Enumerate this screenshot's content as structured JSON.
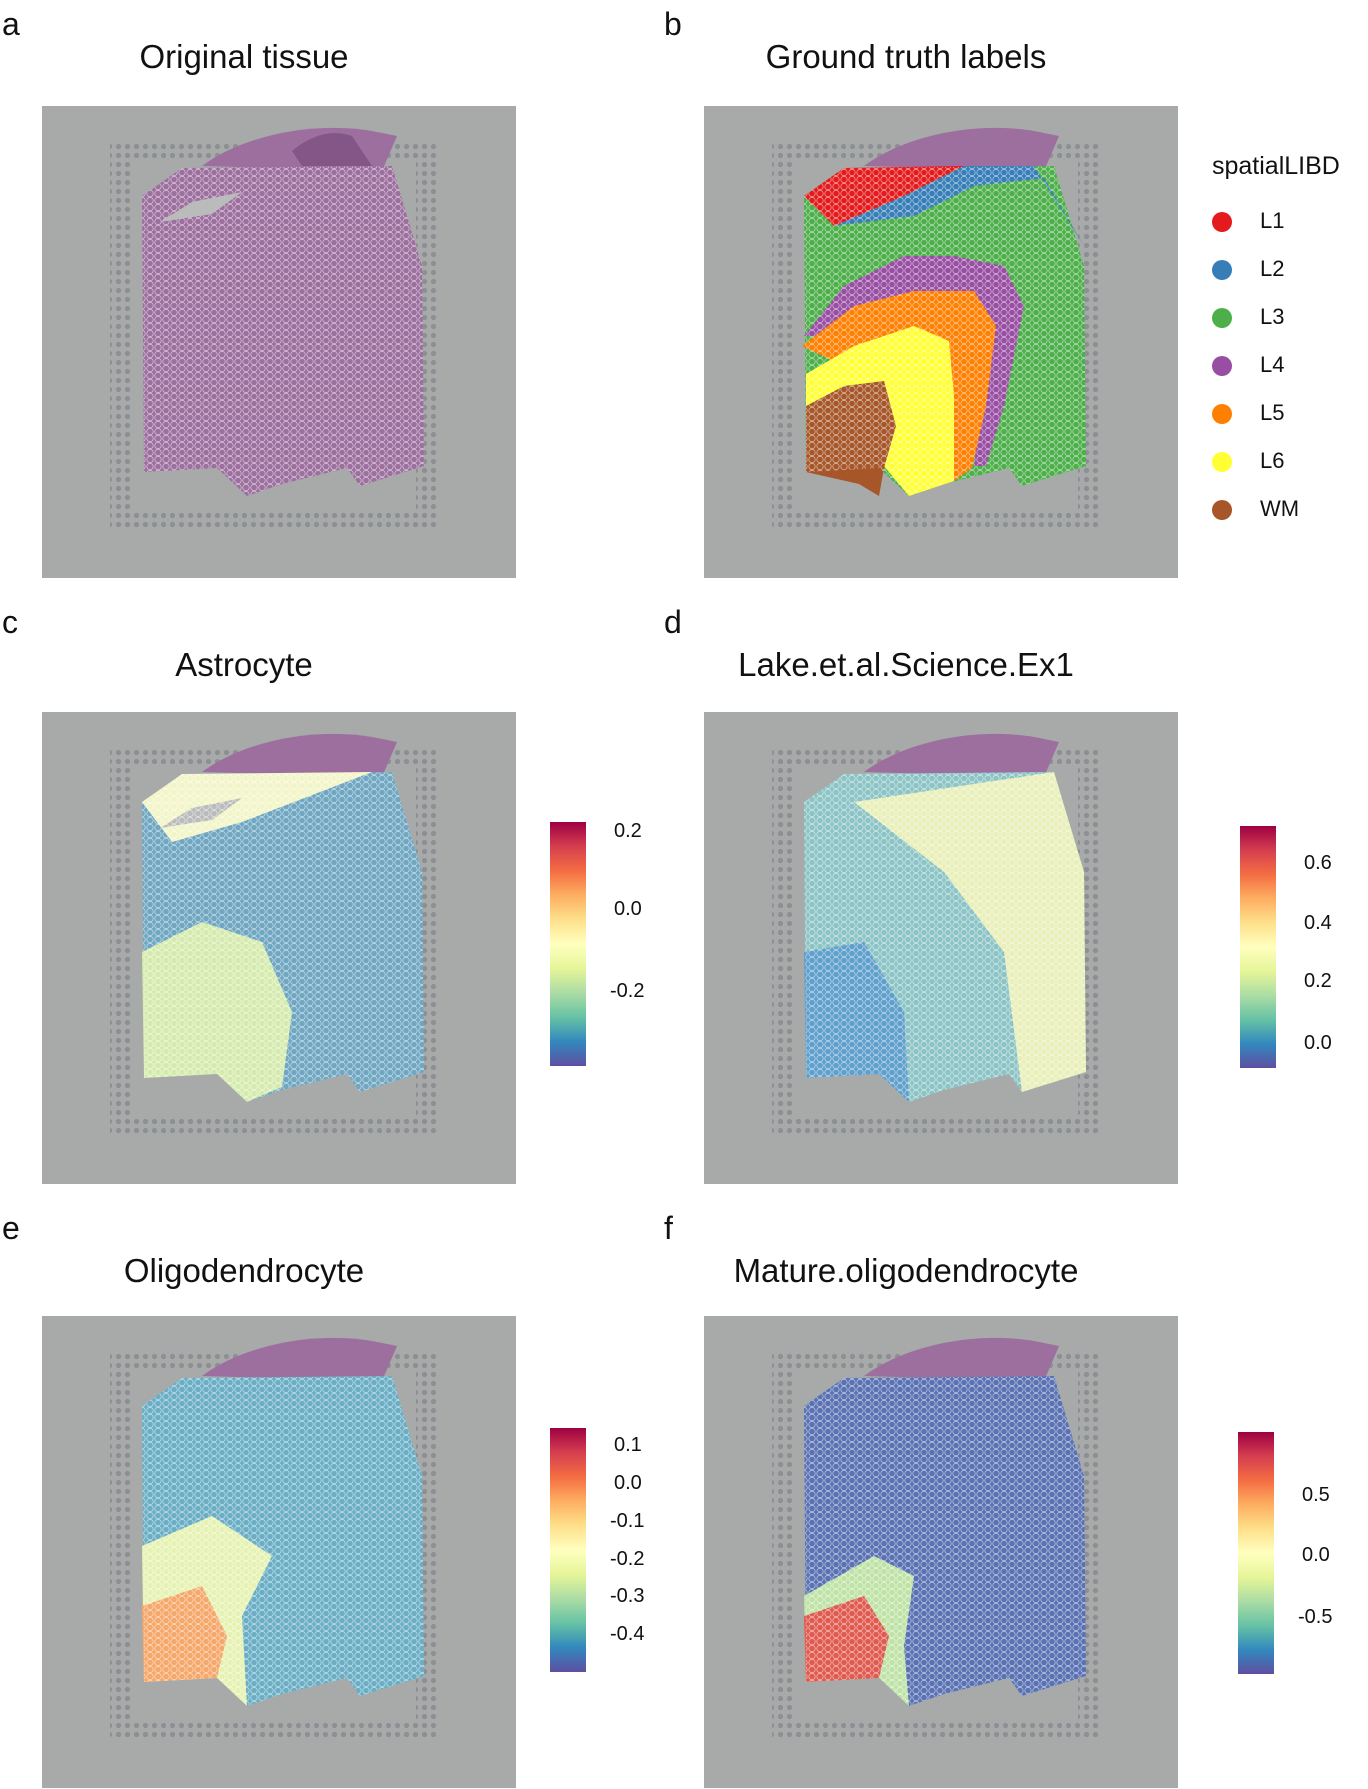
{
  "panels": [
    {
      "label": "a",
      "title": "Original tissue"
    },
    {
      "label": "b",
      "title": "Ground truth labels"
    },
    {
      "label": "c",
      "title": "Astrocyte",
      "ticks": [
        "0.2",
        "0.0",
        "-0.2"
      ]
    },
    {
      "label": "d",
      "title": "Lake.et.al.Science.Ex1",
      "ticks": [
        "0.6",
        "0.4",
        "0.2",
        "0.0"
      ]
    },
    {
      "label": "e",
      "title": "Oligodendrocyte",
      "ticks": [
        "0.1",
        "0.0",
        "-0.1",
        "-0.2",
        "-0.3",
        "-0.4"
      ]
    },
    {
      "label": "f",
      "title": "Mature.oligodendrocyte",
      "ticks": [
        "0.5",
        "0.0",
        "-0.5"
      ]
    }
  ],
  "legend": {
    "title": "spatialLIBD",
    "items": [
      {
        "label": "L1",
        "color": "#e41a1c"
      },
      {
        "label": "L2",
        "color": "#377eb8"
      },
      {
        "label": "L3",
        "color": "#4daf4a"
      },
      {
        "label": "L4",
        "color": "#984ea3"
      },
      {
        "label": "L5",
        "color": "#ff7f00"
      },
      {
        "label": "L6",
        "color": "#ffff33"
      },
      {
        "label": "WM",
        "color": "#a65628"
      }
    ]
  },
  "chart_data": [
    {
      "type": "heatmap",
      "title": "Astrocyte",
      "colorbar_range": [
        -0.35,
        0.22
      ],
      "colorbar_ticks": [
        0.2,
        0.0,
        -0.2
      ],
      "colormap": "Spectral"
    },
    {
      "type": "heatmap",
      "title": "Lake.et.al.Science.Ex1",
      "colorbar_range": [
        -0.07,
        0.72
      ],
      "colorbar_ticks": [
        0.6,
        0.4,
        0.2,
        0.0
      ],
      "colormap": "Spectral"
    },
    {
      "type": "heatmap",
      "title": "Oligodendrocyte",
      "colorbar_range": [
        -0.49,
        0.14
      ],
      "colorbar_ticks": [
        0.1,
        0.0,
        -0.1,
        -0.2,
        -0.3,
        -0.4
      ],
      "colormap": "Spectral"
    },
    {
      "type": "heatmap",
      "title": "Mature.oligodendrocyte",
      "colorbar_range": [
        -0.93,
        0.96
      ],
      "colorbar_ticks": [
        0.5,
        0.0,
        -0.5
      ],
      "colormap": "Spectral"
    }
  ],
  "colors": {
    "background": "#a7aaa9",
    "tissue": "#9c6f9e",
    "spectral": [
      "#5e4fa2",
      "#3288bd",
      "#66c2a5",
      "#abdda4",
      "#e6f598",
      "#ffffbf",
      "#fee08b",
      "#fdae61",
      "#f46d43",
      "#d53e4f",
      "#9e0142"
    ]
  }
}
